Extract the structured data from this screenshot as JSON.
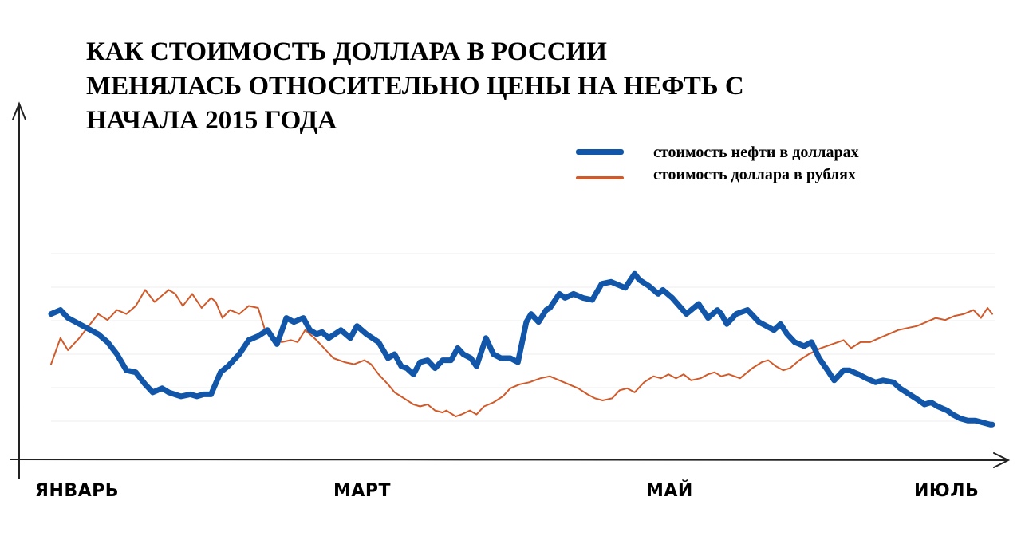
{
  "chart_data": {
    "type": "line",
    "title_lines": [
      "КАК СТОИМОСТЬ ДОЛЛАРА В РОССИИ",
      "МЕНЯЛАСЬ ОТНОСИТЕЛЬНО ЦЕНЫ НА НЕФТЬ С",
      "НАЧАЛА 2015 ГОДА"
    ],
    "x_tick_labels": [
      "ЯНВАРЬ",
      "МАРТ",
      "МАЙ",
      "ИЮЛЬ"
    ],
    "xlim": [
      0,
      1
    ],
    "ylim": [
      0,
      1
    ],
    "axes_units": "unlabeled relative scale",
    "grid": "faint horizontal",
    "legend_position": "top-right",
    "series": [
      {
        "name": "стоимость нефти в долларах",
        "color": "#1156a8",
        "x": [
          0,
          0.01,
          0.018,
          0.03,
          0.05,
          0.06,
          0.07,
          0.08,
          0.09,
          0.1,
          0.108,
          0.118,
          0.125,
          0.138,
          0.148,
          0.155,
          0.162,
          0.17,
          0.18,
          0.188,
          0.2,
          0.21,
          0.22,
          0.23,
          0.24,
          0.25,
          0.258,
          0.268,
          0.275,
          0.282,
          0.288,
          0.295,
          0.308,
          0.318,
          0.325,
          0.335,
          0.348,
          0.358,
          0.365,
          0.372,
          0.378,
          0.385,
          0.392,
          0.4,
          0.408,
          0.416,
          0.425,
          0.432,
          0.438,
          0.446,
          0.452,
          0.462,
          0.47,
          0.478,
          0.488,
          0.496,
          0.505,
          0.51,
          0.518,
          0.526,
          0.53,
          0.54,
          0.546,
          0.555,
          0.565,
          0.575,
          0.585,
          0.595,
          0.61,
          0.62,
          0.625,
          0.635,
          0.645,
          0.65,
          0.66,
          0.675,
          0.688,
          0.698,
          0.708,
          0.712,
          0.718,
          0.728,
          0.74,
          0.752,
          0.76,
          0.768,
          0.775,
          0.782,
          0.79,
          0.8,
          0.808,
          0.816,
          0.825,
          0.832,
          0.842,
          0.848,
          0.858,
          0.866,
          0.876,
          0.884,
          0.895,
          0.902,
          0.912,
          0.922,
          0.928,
          0.935,
          0.942,
          0.952,
          0.958,
          0.966,
          0.974,
          0.982,
          0.99,
          0.998,
          1.0
        ],
        "y": [
          0.7,
          0.72,
          0.68,
          0.65,
          0.6,
          0.56,
          0.5,
          0.42,
          0.41,
          0.35,
          0.31,
          0.33,
          0.31,
          0.29,
          0.3,
          0.29,
          0.3,
          0.3,
          0.41,
          0.44,
          0.5,
          0.57,
          0.59,
          0.62,
          0.55,
          0.68,
          0.66,
          0.68,
          0.62,
          0.6,
          0.61,
          0.58,
          0.62,
          0.58,
          0.64,
          0.6,
          0.56,
          0.48,
          0.5,
          0.44,
          0.43,
          0.4,
          0.46,
          0.47,
          0.43,
          0.47,
          0.47,
          0.53,
          0.5,
          0.48,
          0.44,
          0.58,
          0.5,
          0.48,
          0.48,
          0.46,
          0.66,
          0.7,
          0.66,
          0.72,
          0.73,
          0.8,
          0.78,
          0.8,
          0.78,
          0.77,
          0.85,
          0.86,
          0.83,
          0.9,
          0.87,
          0.84,
          0.8,
          0.82,
          0.78,
          0.7,
          0.75,
          0.68,
          0.72,
          0.7,
          0.65,
          0.7,
          0.72,
          0.66,
          0.64,
          0.62,
          0.65,
          0.6,
          0.56,
          0.54,
          0.56,
          0.48,
          0.42,
          0.37,
          0.42,
          0.42,
          0.4,
          0.38,
          0.36,
          0.37,
          0.36,
          0.33,
          0.3,
          0.27,
          0.25,
          0.26,
          0.24,
          0.22,
          0.2,
          0.18,
          0.17,
          0.17,
          0.16,
          0.15,
          0.15
        ],
        "stroke_emphasis": "thick"
      },
      {
        "name": "стоимость доллара в рублях",
        "color": "#d05a2a",
        "x": [
          0,
          0.01,
          0.018,
          0.03,
          0.04,
          0.05,
          0.06,
          0.07,
          0.08,
          0.09,
          0.1,
          0.11,
          0.12,
          0.125,
          0.132,
          0.14,
          0.15,
          0.16,
          0.17,
          0.175,
          0.182,
          0.19,
          0.2,
          0.21,
          0.22,
          0.228,
          0.235,
          0.245,
          0.255,
          0.262,
          0.27,
          0.282,
          0.292,
          0.3,
          0.312,
          0.322,
          0.333,
          0.34,
          0.348,
          0.358,
          0.365,
          0.375,
          0.385,
          0.392,
          0.4,
          0.408,
          0.416,
          0.42,
          0.43,
          0.436,
          0.445,
          0.452,
          0.46,
          0.47,
          0.48,
          0.488,
          0.498,
          0.508,
          0.52,
          0.53,
          0.54,
          0.55,
          0.56,
          0.57,
          0.578,
          0.586,
          0.596,
          0.604,
          0.612,
          0.62,
          0.63,
          0.64,
          0.648,
          0.656,
          0.664,
          0.672,
          0.68,
          0.69,
          0.698,
          0.705,
          0.712,
          0.72,
          0.732,
          0.745,
          0.755,
          0.762,
          0.77,
          0.778,
          0.785,
          0.795,
          0.805,
          0.818,
          0.83,
          0.842,
          0.85,
          0.86,
          0.87,
          0.88,
          0.89,
          0.9,
          0.91,
          0.92,
          0.93,
          0.94,
          0.95,
          0.96,
          0.97,
          0.98,
          0.988,
          0.995,
          1.0
        ],
        "y": [
          0.45,
          0.58,
          0.52,
          0.58,
          0.64,
          0.7,
          0.67,
          0.72,
          0.7,
          0.74,
          0.82,
          0.76,
          0.8,
          0.82,
          0.8,
          0.74,
          0.8,
          0.73,
          0.78,
          0.76,
          0.68,
          0.72,
          0.7,
          0.74,
          0.73,
          0.61,
          0.59,
          0.56,
          0.57,
          0.56,
          0.62,
          0.57,
          0.52,
          0.48,
          0.46,
          0.45,
          0.47,
          0.45,
          0.4,
          0.35,
          0.31,
          0.28,
          0.25,
          0.24,
          0.25,
          0.22,
          0.21,
          0.22,
          0.19,
          0.2,
          0.22,
          0.2,
          0.24,
          0.26,
          0.29,
          0.33,
          0.35,
          0.36,
          0.38,
          0.39,
          0.37,
          0.35,
          0.33,
          0.3,
          0.28,
          0.27,
          0.28,
          0.32,
          0.33,
          0.31,
          0.36,
          0.39,
          0.38,
          0.4,
          0.38,
          0.4,
          0.37,
          0.38,
          0.4,
          0.41,
          0.39,
          0.4,
          0.38,
          0.43,
          0.46,
          0.47,
          0.44,
          0.42,
          0.43,
          0.47,
          0.5,
          0.53,
          0.55,
          0.57,
          0.53,
          0.56,
          0.56,
          0.58,
          0.6,
          0.62,
          0.63,
          0.64,
          0.66,
          0.68,
          0.67,
          0.69,
          0.7,
          0.72,
          0.68,
          0.73,
          0.7
        ],
        "stroke_emphasis": "thin"
      }
    ]
  }
}
